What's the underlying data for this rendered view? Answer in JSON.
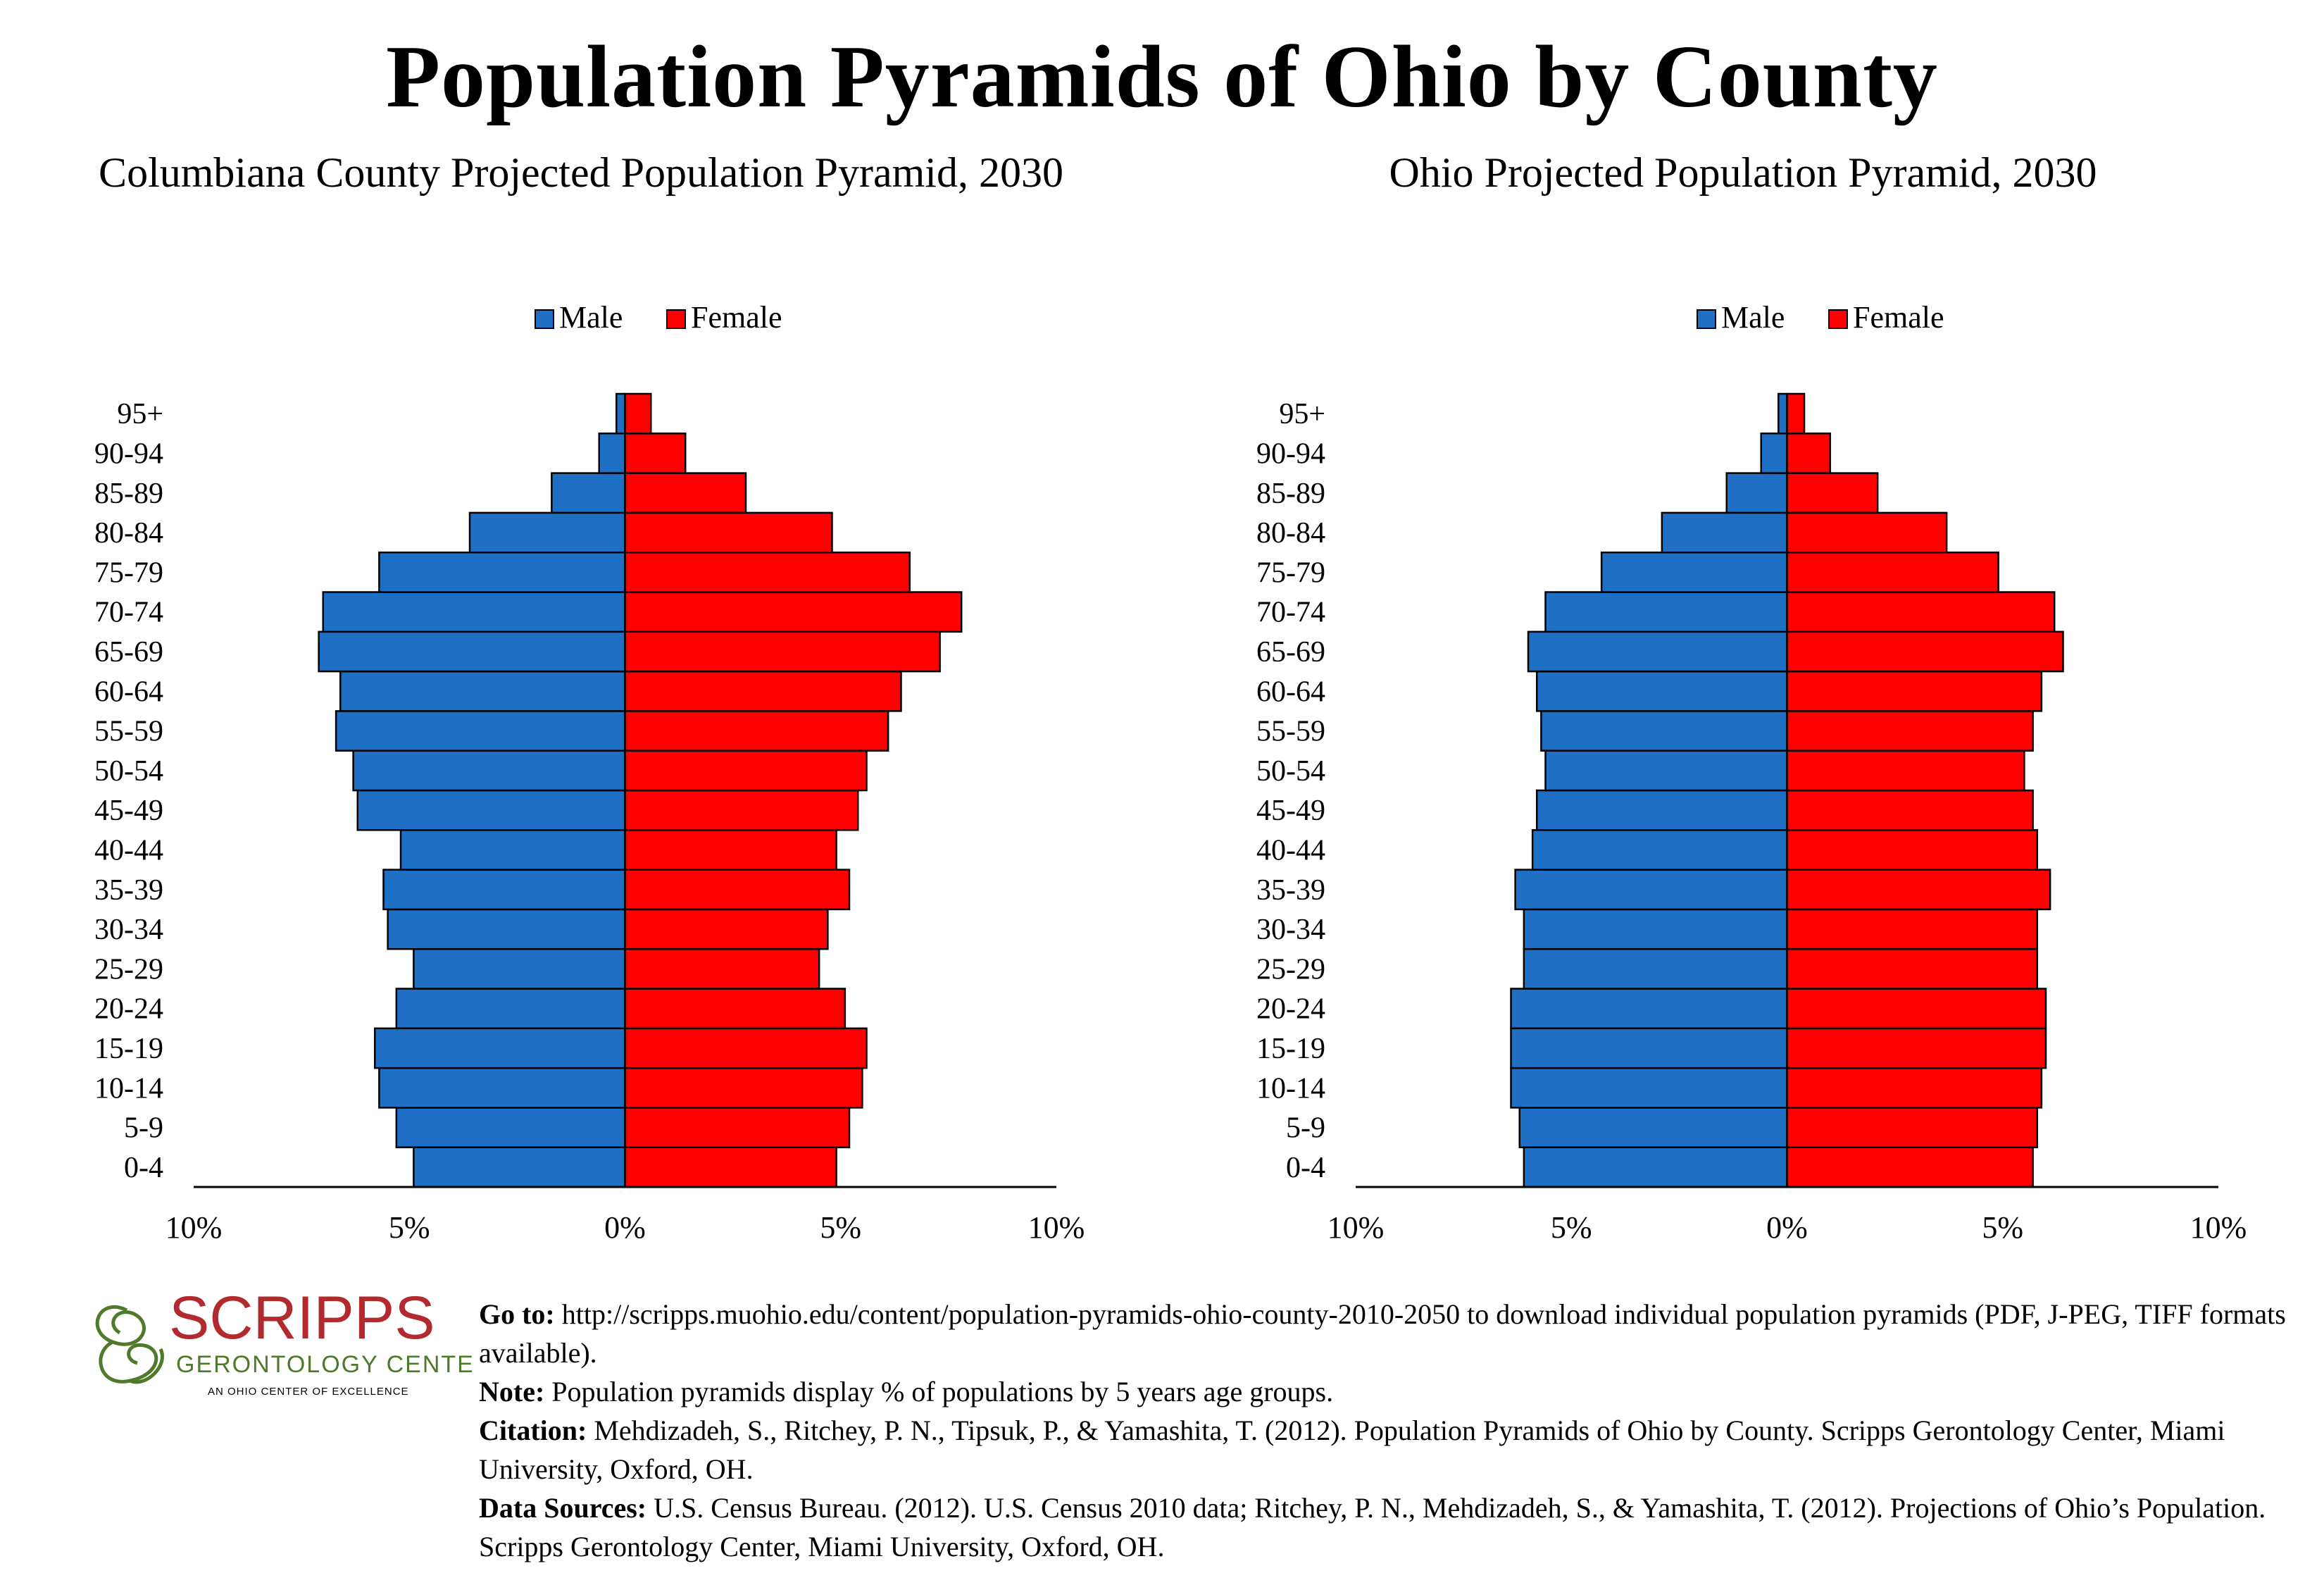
{
  "title": "Population Pyramids of Ohio by County",
  "colors": {
    "male": "#1f6fc5",
    "female": "#ff0000",
    "axis": "#000000",
    "logo": "#b22a2e",
    "logo_green": "#4e7a2a"
  },
  "age_groups": [
    "0-4",
    "5-9",
    "10-14",
    "15-19",
    "20-24",
    "25-29",
    "30-34",
    "35-39",
    "40-44",
    "45-49",
    "50-54",
    "55-59",
    "60-64",
    "65-69",
    "70-74",
    "75-79",
    "80-84",
    "85-89",
    "90-94",
    "95+"
  ],
  "chart_data": [
    {
      "type": "bar",
      "orientation": "horizontal-pyramid",
      "title": "Columbiana County Projected Population Pyramid, 2030",
      "categories": [
        "0-4",
        "5-9",
        "10-14",
        "15-19",
        "20-24",
        "25-29",
        "30-34",
        "35-39",
        "40-44",
        "45-49",
        "50-54",
        "55-59",
        "60-64",
        "65-69",
        "70-74",
        "75-79",
        "80-84",
        "85-89",
        "90-94",
        "95+"
      ],
      "series": [
        {
          "name": "Male",
          "values": [
            4.9,
            5.3,
            5.7,
            5.8,
            5.3,
            4.9,
            5.5,
            5.6,
            5.2,
            6.2,
            6.3,
            6.7,
            6.6,
            7.1,
            7.0,
            5.7,
            3.6,
            1.7,
            0.6,
            0.2
          ]
        },
        {
          "name": "Female",
          "values": [
            4.9,
            5.2,
            5.5,
            5.6,
            5.1,
            4.5,
            4.7,
            5.2,
            4.9,
            5.4,
            5.6,
            6.1,
            6.4,
            7.3,
            7.8,
            6.6,
            4.8,
            2.8,
            1.4,
            0.6
          ]
        }
      ],
      "legend": [
        "Male",
        "Female"
      ],
      "legend_position": "top",
      "xlim": [
        -10,
        10
      ],
      "x_ticks": [
        "10%",
        "5%",
        "0%",
        "5%",
        "10%"
      ],
      "grid": false
    },
    {
      "type": "bar",
      "orientation": "horizontal-pyramid",
      "title": "Ohio Projected Population Pyramid, 2030",
      "categories": [
        "0-4",
        "5-9",
        "10-14",
        "15-19",
        "20-24",
        "25-29",
        "30-34",
        "35-39",
        "40-44",
        "45-49",
        "50-54",
        "55-59",
        "60-64",
        "65-69",
        "70-74",
        "75-79",
        "80-84",
        "85-89",
        "90-94",
        "95+"
      ],
      "series": [
        {
          "name": "Male",
          "values": [
            6.1,
            6.2,
            6.4,
            6.4,
            6.4,
            6.1,
            6.1,
            6.3,
            5.9,
            5.8,
            5.6,
            5.7,
            5.8,
            6.0,
            5.6,
            4.3,
            2.9,
            1.4,
            0.6,
            0.2
          ]
        },
        {
          "name": "Female",
          "values": [
            5.7,
            5.8,
            5.9,
            6.0,
            6.0,
            5.8,
            5.8,
            6.1,
            5.8,
            5.7,
            5.5,
            5.7,
            5.9,
            6.4,
            6.2,
            4.9,
            3.7,
            2.1,
            1.0,
            0.4
          ]
        }
      ],
      "legend": [
        "Male",
        "Female"
      ],
      "legend_position": "top",
      "xlim": [
        -10,
        10
      ],
      "x_ticks": [
        "10%",
        "5%",
        "0%",
        "5%",
        "10%"
      ],
      "grid": false
    }
  ],
  "logo": {
    "name": "SCRIPPS",
    "subtitle": "GERONTOLOGY CENTER",
    "tagline": "AN OHIO CENTER OF EXCELLENCE"
  },
  "footer": {
    "goto_label": "Go to:",
    "goto_text": " http://scripps.muohio.edu/content/population-pyramids-ohio-county-2010-2050 to download individual population pyramids (PDF, J-PEG, TIFF formats available).",
    "note_label": "Note:",
    "note_text": " Population pyramids display % of populations by 5 years age groups.",
    "citation_label": "Citation:",
    "citation_text": " Mehdizadeh, S., Ritchey, P. N., Tipsuk, P., & Yamashita, T. (2012). Population Pyramids of Ohio by County. Scripps Gerontology Center, Miami University, Oxford, OH.",
    "sources_label": "Data Sources:",
    "sources_text": " U.S. Census Bureau. (2012). U.S. Census 2010 data; Ritchey, P. N., Mehdizadeh, S., & Yamashita, T. (2012). Projections of Ohio’s Population. Scripps Gerontology Center, Miami University, Oxford, OH."
  }
}
